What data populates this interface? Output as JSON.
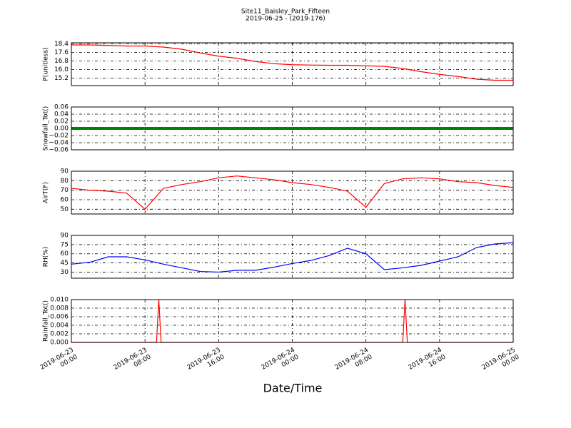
{
  "figure": {
    "title": "Site11_Baisley_Park_Fifteen",
    "subtitle": "2019-06-25 - (2019-176)",
    "xlabel": "Date/Time"
  },
  "chart_data": [
    {
      "type": "line",
      "ylabel": "P(unitless)",
      "ylim": [
        14.5,
        18.5
      ],
      "yticks": [
        15.2,
        {
          "value": 16,
          "label": "16.0"
        },
        16.8,
        17.6,
        18.4
      ],
      "grid": true,
      "x": [
        "2019-06-23 00:00",
        "2019-06-23 02:00",
        "2019-06-23 04:00",
        "2019-06-23 06:00",
        "2019-06-23 08:00",
        "2019-06-23 10:00",
        "2019-06-23 12:00",
        "2019-06-23 14:00",
        "2019-06-23 16:00",
        "2019-06-23 18:00",
        "2019-06-23 20:00",
        "2019-06-23 22:00",
        "2019-06-24 00:00",
        "2019-06-24 02:00",
        "2019-06-24 04:00",
        "2019-06-24 06:00",
        "2019-06-24 08:00",
        "2019-06-24 10:00",
        "2019-06-24 12:00",
        "2019-06-24 14:00",
        "2019-06-24 16:00",
        "2019-06-24 18:00",
        "2019-06-24 20:00",
        "2019-06-24 22:00",
        "2019-06-25 00:00"
      ],
      "series": [
        {
          "color": "#ff0000",
          "values": [
            18.3,
            18.3,
            18.25,
            18.2,
            18.2,
            18.1,
            17.9,
            17.55,
            17.25,
            17.05,
            16.75,
            16.55,
            16.45,
            16.42,
            16.4,
            16.4,
            16.35,
            16.3,
            16.1,
            15.8,
            15.55,
            15.35,
            15.1,
            15.0,
            15.0
          ]
        }
      ]
    },
    {
      "type": "line",
      "ylabel": "Snowfall_Tot()",
      "ylim": [
        -0.06,
        0.06
      ],
      "yticks": [
        {
          "value": -0.06,
          "label": "−0.06"
        },
        {
          "value": -0.04,
          "label": "−0.04"
        },
        {
          "value": -0.02,
          "label": "−0.02"
        },
        {
          "value": 0,
          "label": "0.00"
        },
        0.02,
        0.04,
        0.06
      ],
      "grid": true,
      "x": [
        "2019-06-23 00:00",
        "2019-06-23 08:00",
        "2019-06-23 16:00",
        "2019-06-24 00:00",
        "2019-06-24 08:00",
        "2019-06-24 16:00",
        "2019-06-25 00:00"
      ],
      "series": [
        {
          "color": "#008000",
          "values": [
            0,
            0,
            0,
            0,
            0,
            0,
            0
          ]
        }
      ]
    },
    {
      "type": "line",
      "ylabel": "AirT(F)",
      "ylim": [
        45,
        90
      ],
      "yticks": [
        50,
        60,
        70,
        80,
        90
      ],
      "grid": true,
      "x": [
        "2019-06-23 00:00",
        "2019-06-23 02:00",
        "2019-06-23 04:00",
        "2019-06-23 06:00",
        "2019-06-23 08:00",
        "2019-06-23 10:00",
        "2019-06-23 12:00",
        "2019-06-23 14:00",
        "2019-06-23 16:00",
        "2019-06-23 18:00",
        "2019-06-23 20:00",
        "2019-06-23 22:00",
        "2019-06-24 00:00",
        "2019-06-24 02:00",
        "2019-06-24 04:00",
        "2019-06-24 06:00",
        "2019-06-24 08:00",
        "2019-06-24 10:00",
        "2019-06-24 12:00",
        "2019-06-24 14:00",
        "2019-06-24 16:00",
        "2019-06-24 18:00",
        "2019-06-24 20:00",
        "2019-06-24 22:00",
        "2019-06-25 00:00"
      ],
      "series": [
        {
          "color": "#ff0000",
          "values": [
            72,
            70,
            69,
            67,
            50,
            72,
            76,
            79,
            83,
            85,
            83,
            81,
            78,
            76,
            73,
            69,
            52,
            77,
            82,
            83,
            82,
            79,
            78,
            75,
            73
          ]
        }
      ]
    },
    {
      "type": "line",
      "ylabel": "RH(%)",
      "ylim": [
        20,
        90
      ],
      "yticks": [
        30,
        45,
        60,
        75,
        90
      ],
      "grid": true,
      "x": [
        "2019-06-23 00:00",
        "2019-06-23 02:00",
        "2019-06-23 04:00",
        "2019-06-23 06:00",
        "2019-06-23 08:00",
        "2019-06-23 10:00",
        "2019-06-23 12:00",
        "2019-06-23 14:00",
        "2019-06-23 16:00",
        "2019-06-23 18:00",
        "2019-06-23 20:00",
        "2019-06-23 22:00",
        "2019-06-24 00:00",
        "2019-06-24 02:00",
        "2019-06-24 04:00",
        "2019-06-24 06:00",
        "2019-06-24 08:00",
        "2019-06-24 10:00",
        "2019-06-24 12:00",
        "2019-06-24 14:00",
        "2019-06-24 16:00",
        "2019-06-24 18:00",
        "2019-06-24 20:00",
        "2019-06-24 22:00",
        "2019-06-25 00:00"
      ],
      "series": [
        {
          "color": "#0000ff",
          "values": [
            43,
            46,
            55,
            55,
            50,
            43,
            37,
            31,
            30,
            33,
            33,
            38,
            44,
            49,
            57,
            69,
            60,
            34,
            37,
            41,
            48,
            55,
            70,
            76,
            78
          ]
        }
      ]
    },
    {
      "type": "line",
      "ylabel": "Rainfall_Tot()",
      "ylim": [
        0,
        0.01
      ],
      "yticks": [
        {
          "value": 0,
          "label": "0.000"
        },
        0.002,
        0.004,
        0.006,
        0.008,
        {
          "value": 0.01,
          "label": "0.010"
        }
      ],
      "grid": true,
      "xlim": [
        "2019-06-23 00:00",
        "2019-06-25 00:00"
      ],
      "xticks": [
        "2019-06-23 00:00",
        "2019-06-23 08:00",
        "2019-06-23 16:00",
        "2019-06-24 00:00",
        "2019-06-24 08:00",
        "2019-06-24 16:00",
        "2019-06-25 00:00"
      ],
      "x": [
        "2019-06-23 00:00",
        "2019-06-23 09:15",
        "2019-06-23 09:30",
        "2019-06-23 09:45",
        "2019-06-24 12:00",
        "2019-06-24 12:15",
        "2019-06-24 12:30",
        "2019-06-25 00:00"
      ],
      "series": [
        {
          "color": "#ff0000",
          "values": [
            0,
            0,
            0.01,
            0,
            0,
            0.01,
            0,
            0
          ]
        }
      ]
    }
  ]
}
